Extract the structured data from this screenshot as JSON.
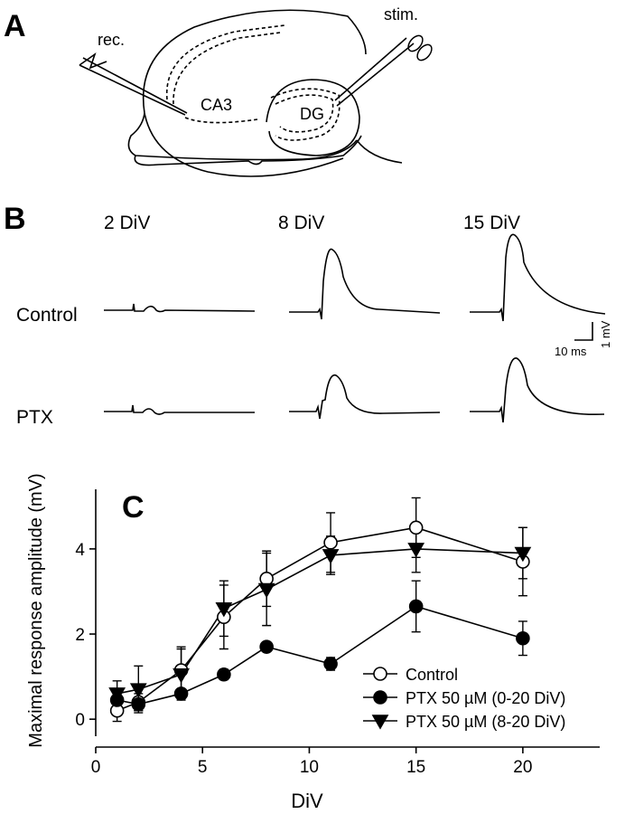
{
  "panel_a": {
    "label": "A",
    "rec": "rec.",
    "stim": "stim.",
    "ca3": "CA3",
    "dg": "DG"
  },
  "panel_b": {
    "label": "B",
    "columns": [
      "2 DiV",
      "8 DiV",
      "15 DiV"
    ],
    "rows": [
      "Control",
      "PTX"
    ],
    "scale_time": "10 ms",
    "scale_voltage": "1 mV"
  },
  "chart_data": {
    "type": "line",
    "panel_label": "C",
    "x_label": "DiV",
    "y_label": "Maximal response amplitude (mV)",
    "x": [
      1,
      2,
      4,
      6,
      8,
      11,
      15,
      20
    ],
    "xlim": [
      0,
      23.6
    ],
    "ylim": [
      -0.4,
      5.4
    ],
    "xticks": [
      0,
      5,
      10,
      15,
      20
    ],
    "yticks": [
      0,
      2,
      4
    ],
    "legend_position": "lower right",
    "series": [
      {
        "name": "Control",
        "color": "#000000",
        "marker": "open-circle",
        "values": [
          0.2,
          0.4,
          1.15,
          2.4,
          3.3,
          4.15,
          4.5,
          3.7
        ],
        "errors": [
          0.25,
          0.2,
          0.55,
          0.75,
          0.65,
          0.7,
          0.7,
          0.8
        ]
      },
      {
        "name": "PTX 50 µM (0-20 DiV)",
        "color": "#000000",
        "marker": "filled-circle",
        "values": [
          0.45,
          0.35,
          0.6,
          1.05,
          1.7,
          1.3,
          2.65,
          1.9
        ],
        "errors": [
          0.2,
          0.15,
          0.05,
          0.12,
          0.1,
          0.15,
          0.6,
          0.4
        ]
      },
      {
        "name": "PTX 50 µM (8-20 DiV)",
        "color": "#000000",
        "marker": "triangle-down",
        "values": [
          0.6,
          0.7,
          1.05,
          2.6,
          3.05,
          3.85,
          4.0,
          3.9
        ],
        "errors": [
          0.3,
          0.55,
          0.6,
          0.65,
          0.85,
          0.45,
          0.55,
          0.6
        ]
      }
    ]
  }
}
